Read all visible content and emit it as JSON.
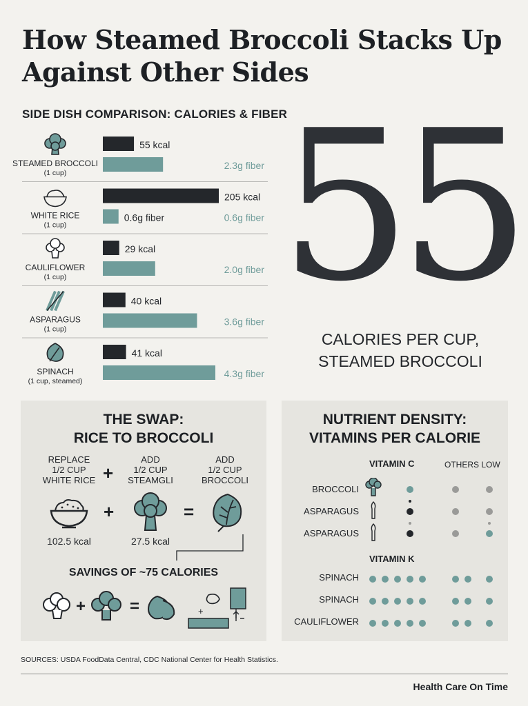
{
  "title": "How Steamed Broccoli Stacks Up Against Other Sides",
  "comparison_heading": "SIDE DISH COMPARISON: CALORIES & FIBER",
  "big_stat": {
    "number": "55",
    "caption_line1": "CALORIES PER CUP,",
    "caption_line2": "STEAMED BROCCOLI"
  },
  "chart_data": {
    "type": "bar",
    "title": "SIDE DISH COMPARISON: CALORIES & FIBER",
    "categories": [
      "STEAMED BROCCOLI",
      "WHITE RICE",
      "CAULIFLOWER",
      "ASPARAGUS",
      "SPINACH"
    ],
    "serving_notes": [
      "(1 cup)",
      "(1 cup)",
      "(1 cup)",
      "(1 cup)",
      "(1 cup, steamed)"
    ],
    "series": [
      {
        "values": [
          55,
          205,
          29,
          40,
          41
        ],
        "color": "#24272b",
        "labels": [
          "55 kcal",
          "205 kcal",
          "29 kcal",
          "40 kcal",
          "41 kcal"
        ]
      },
      {
        "values": [
          2.3,
          0.6,
          2.0,
          3.6,
          4.3
        ],
        "color": "#6f9c9a",
        "labels": [
          "2.3g fiber",
          "0.6g fiber",
          "2.0g fiber",
          "3.6g fiber",
          "4.3g fiber"
        ]
      }
    ],
    "inner_labels": [
      "",
      "0.6g fiber",
      "",
      "",
      ""
    ],
    "icons": [
      "broccoli-icon",
      "rice-bowl-icon",
      "cauliflower-icon",
      "asparagus-icon",
      "spinach-leaf-icon"
    ],
    "grid": false,
    "legend": "none"
  },
  "swap": {
    "title_line1": "THE SWAP:",
    "title_line2": "RICE TO BROCCOLI",
    "col1": [
      "REPLACE",
      "1/2 CUP",
      "WHITE RICE"
    ],
    "col2": [
      "ADD",
      "1/2 CUP",
      "STEAMGLI"
    ],
    "col3": [
      "ADD",
      "1/2 CUP",
      "BROCCOLI"
    ],
    "plus": "+",
    "equals": "=",
    "kcal1": "102.5 kcal",
    "kcal2": "27.5 kcal",
    "savings": "SAVINGS OF ~75 CALORIES"
  },
  "nutrient": {
    "title_line1": "NUTRIENT DENSITY:",
    "title_line2": "VITAMINS PER CALORIE",
    "vitamin_c": "VITAMIN C",
    "others_low": "OTHERS LOW",
    "vitamin_k": "VITAMIN K",
    "c_rows": [
      "BROCCOLI",
      "ASPARAGUS",
      "ASPARAGUS"
    ],
    "k_rows": [
      "SPINACH",
      "SPINACH",
      "CAULIFLOWER"
    ]
  },
  "sources": "SOURCES: USDA FoodData Central, CDC National Center for Health Statistics.",
  "brand": "Health Care On Time"
}
